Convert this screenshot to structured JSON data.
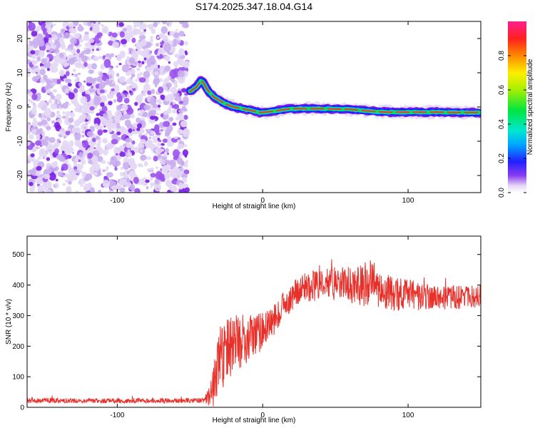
{
  "title": "S174.2025.347.18.04.G14",
  "chart_data": [
    {
      "type": "heatmap",
      "xlabel": "Height of straight line (km)",
      "ylabel": "Frequency (Hz)",
      "xlim": [
        -162,
        150
      ],
      "ylim": [
        -25,
        25
      ],
      "xticks": [
        -100,
        0,
        100
      ],
      "yticks": [
        -20,
        -10,
        0,
        10,
        20
      ],
      "noise_region_x": [
        -162,
        -52
      ],
      "signal_track": {
        "x": [
          -50,
          -45,
          -42,
          -38,
          -34,
          -30,
          -26,
          -20,
          -14,
          -8,
          -2,
          2,
          8,
          14,
          20,
          30,
          40,
          50,
          60,
          68,
          74,
          80,
          86,
          92,
          100,
          110,
          120,
          130,
          140,
          150
        ],
        "y": [
          4.5,
          6,
          8,
          5,
          3,
          2,
          1,
          0,
          -0.5,
          -1,
          -1.6,
          -1.5,
          -1.2,
          -0.8,
          -0.5,
          -0.5,
          -0.5,
          -0.6,
          -0.7,
          -1,
          -1.2,
          -1.4,
          -1.5,
          -1.5,
          -1.5,
          -1.5,
          -1.5,
          -1.6,
          -1.6,
          -1.6
        ]
      },
      "colorbar": {
        "label": "Normalized spectral amplitude",
        "range": [
          0,
          1
        ],
        "ticks": [
          0.0,
          0.2,
          0.4,
          0.6,
          0.8
        ]
      }
    },
    {
      "type": "line",
      "xlabel": "Height of straight line (km)",
      "ylabel": "SNR (10 * v/v)",
      "xlim": [
        -162,
        150
      ],
      "ylim": [
        0,
        560
      ],
      "xticks": [
        -100,
        0,
        100
      ],
      "yticks": [
        0,
        100,
        200,
        300,
        400,
        500
      ],
      "series": [
        {
          "name": "SNR",
          "color": "#e8302a",
          "envelope_x": [
            -162,
            -45,
            -40,
            -36,
            -33,
            -30,
            -25,
            -20,
            -15,
            -10,
            -5,
            0,
            5,
            10,
            15,
            20,
            25,
            30,
            40,
            50,
            60,
            70,
            75,
            80,
            90,
            100,
            110,
            120,
            130,
            140,
            150
          ],
          "envelope_y": [
            22,
            22,
            24,
            35,
            80,
            140,
            180,
            200,
            220,
            225,
            235,
            250,
            270,
            300,
            330,
            360,
            385,
            395,
            400,
            405,
            400,
            400,
            405,
            380,
            370,
            370,
            360,
            360,
            360,
            360,
            360
          ],
          "noise_amp": [
            8,
            8,
            10,
            40,
            80,
            110,
            110,
            100,
            90,
            80,
            70,
            60,
            55,
            50,
            45,
            45,
            45,
            50,
            50,
            55,
            60,
            70,
            80,
            70,
            60,
            50,
            45,
            40,
            40,
            40,
            40
          ]
        }
      ]
    }
  ]
}
